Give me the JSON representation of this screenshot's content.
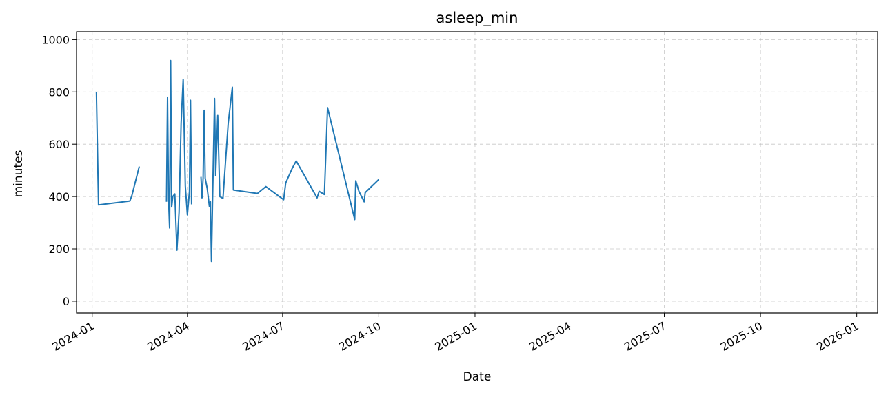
{
  "chart_data": {
    "type": "line",
    "title": "asleep_min",
    "xlabel": "Date",
    "ylabel": "minutes",
    "xlim": [
      "2023-12-17",
      "2026-01-21"
    ],
    "ylim": [
      -45,
      1030
    ],
    "x_ticks": [
      "2024-01",
      "2024-04",
      "2024-07",
      "2024-10",
      "2025-01",
      "2025-04",
      "2025-07",
      "2025-10",
      "2026-01"
    ],
    "y_ticks": [
      0,
      200,
      400,
      600,
      800,
      1000
    ],
    "grid": true,
    "line_color": "#1f77b4",
    "series": [
      {
        "segments": [
          [
            [
              "2024-01-05",
              800
            ],
            [
              "2024-01-07",
              368
            ],
            [
              "2024-02-06",
              383
            ],
            [
              "2024-02-08",
              405
            ],
            [
              "2024-02-15",
              515
            ]
          ],
          [
            [
              "2024-03-12",
              380
            ],
            [
              "2024-03-13",
              780
            ],
            [
              "2024-03-14",
              390
            ],
            [
              "2024-03-15",
              280
            ],
            [
              "2024-03-16",
              920
            ],
            [
              "2024-03-17",
              360
            ],
            [
              "2024-03-18",
              400
            ],
            [
              "2024-03-20",
              410
            ],
            [
              "2024-03-22",
              195
            ],
            [
              "2024-03-24",
              340
            ],
            [
              "2024-03-26",
              680
            ],
            [
              "2024-03-28",
              848
            ],
            [
              "2024-03-30",
              440
            ],
            [
              "2024-04-01",
              330
            ],
            [
              "2024-04-03",
              420
            ],
            [
              "2024-04-04",
              768
            ],
            [
              "2024-04-05",
              370
            ]
          ],
          [
            [
              "2024-04-14",
              475
            ],
            [
              "2024-04-15",
              395
            ],
            [
              "2024-04-16",
              470
            ],
            [
              "2024-04-17",
              730
            ],
            [
              "2024-04-18",
              470
            ],
            [
              "2024-04-20",
              430
            ],
            [
              "2024-04-22",
              362
            ],
            [
              "2024-04-23",
              380
            ],
            [
              "2024-04-24",
              152
            ],
            [
              "2024-04-25",
              370
            ],
            [
              "2024-04-27",
              775
            ],
            [
              "2024-04-28",
              480
            ],
            [
              "2024-04-30",
              710
            ],
            [
              "2024-05-02",
              400
            ],
            [
              "2024-05-05",
              393
            ],
            [
              "2024-05-10",
              680
            ],
            [
              "2024-05-14",
              818
            ],
            [
              "2024-05-15",
              425
            ],
            [
              "2024-06-07",
              412
            ],
            [
              "2024-06-15",
              438
            ],
            [
              "2024-07-02",
              388
            ],
            [
              "2024-07-04",
              452
            ],
            [
              "2024-07-10",
              506
            ],
            [
              "2024-07-14",
              536
            ],
            [
              "2024-08-03",
              395
            ],
            [
              "2024-08-05",
              420
            ],
            [
              "2024-08-10",
              408
            ],
            [
              "2024-08-13",
              740
            ],
            [
              "2024-09-08",
              312
            ],
            [
              "2024-09-09",
              460
            ],
            [
              "2024-09-12",
              420
            ],
            [
              "2024-09-17",
              380
            ],
            [
              "2024-09-18",
              415
            ],
            [
              "2024-10-01",
              465
            ]
          ]
        ]
      }
    ]
  }
}
